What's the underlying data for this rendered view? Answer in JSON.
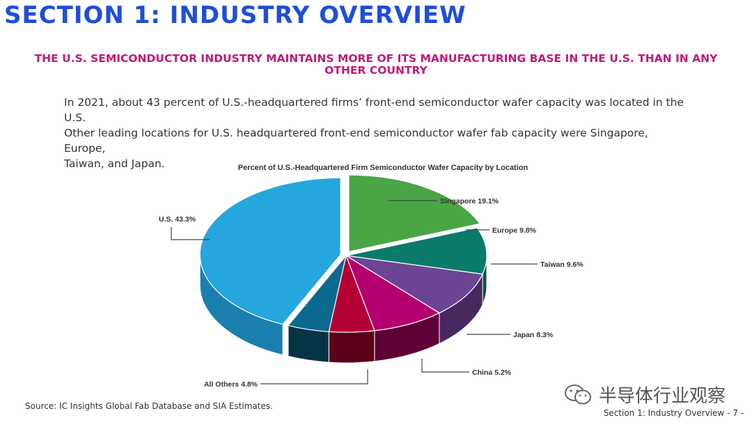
{
  "section_title": "SECTION 1: INDUSTRY OVERVIEW",
  "headline": "THE U.S. SEMICONDUCTOR INDUSTRY MAINTAINS MORE OF ITS MANUFACTURING BASE IN THE U.S. THAN IN ANY OTHER COUNTRY",
  "body_lines": [
    "In 2021, about 43 percent of U.S.-headquartered firms’ front-end semiconductor wafer capacity was located in the U.S.",
    "Other leading locations for U.S. headquartered front-end semiconductor wafer fab capacity were Singapore, Europe,",
    "Taiwan, and Japan."
  ],
  "chart_data": {
    "type": "pie",
    "title": "Percent of U.S.-Headquartered Firm Semiconductor Wafer Capacity by Location",
    "slices": [
      {
        "label": "U.S. 43.3%",
        "name": "U.S.",
        "value": 43.3,
        "color": "#25a6dc",
        "side_color": "#1a7fae"
      },
      {
        "label": "Singapore 19.1%",
        "name": "Singapore",
        "value": 19.1,
        "color": "#4aa644",
        "side_color": "#357a31"
      },
      {
        "label": "Europe 9.8%",
        "name": "Europe",
        "value": 9.8,
        "color": "#0a7a6a",
        "side_color": "#065549"
      },
      {
        "label": "Taiwan 9.6%",
        "name": "Taiwan",
        "value": 9.6,
        "color": "#6b4593",
        "side_color": "#47285f"
      },
      {
        "label": "Japan 8.3%",
        "name": "Japan",
        "value": 8.3,
        "color": "#b4006f",
        "side_color": "#5e0035"
      },
      {
        "label": "China 5.2%",
        "name": "China",
        "value": 5.2,
        "color": "#b50035",
        "side_color": "#5c0019"
      },
      {
        "label": "All Others 4.8%",
        "name": "All Others",
        "value": 4.8,
        "color": "#0b6a8e",
        "side_color": "#063447"
      }
    ],
    "legend": "none",
    "style": "3d-exploded"
  },
  "source": "Source: IC Insights Global Fab Database and SIA Estimates.",
  "watermark": {
    "icon": "wechat-icon",
    "text": "半导体行业观察"
  },
  "footer": "Section 1: Industry Overview - 7 -"
}
